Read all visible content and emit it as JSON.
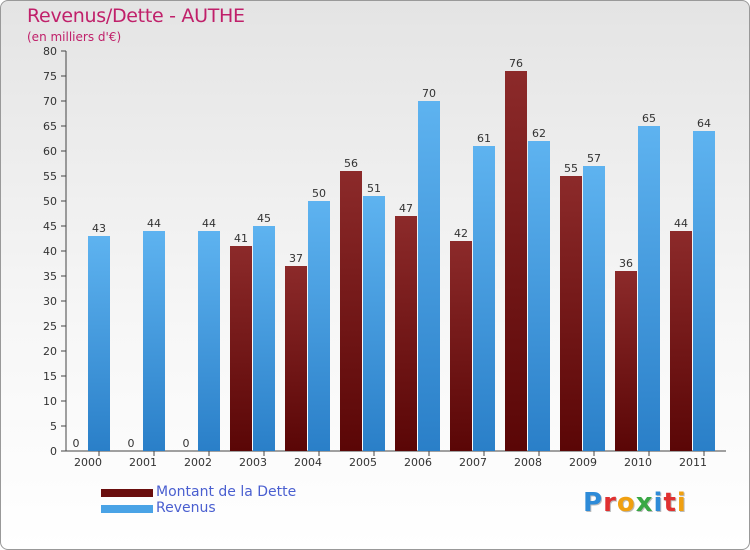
{
  "chart_data": {
    "type": "bar",
    "title": "Revenus/Dette - AUTHE",
    "subtitle": "(en milliers d'€)",
    "xlabel": "",
    "ylabel": "",
    "ylim": [
      0,
      80
    ],
    "ytick_step": 5,
    "categories": [
      "2000",
      "2001",
      "2002",
      "2003",
      "2004",
      "2005",
      "2006",
      "2007",
      "2008",
      "2009",
      "2010",
      "2011"
    ],
    "series": [
      {
        "name": "Montant de la Dette",
        "color": "#7a1a1a",
        "values": [
          0,
          0,
          0,
          41,
          37,
          56,
          47,
          42,
          76,
          55,
          36,
          44
        ]
      },
      {
        "name": "Revenus",
        "color": "#4aa3e6",
        "values": [
          43,
          44,
          44,
          45,
          50,
          51,
          70,
          61,
          62,
          57,
          65,
          64
        ]
      }
    ],
    "legend_position": "bottom-left",
    "grid": false
  },
  "logo": {
    "letters": [
      {
        "ch": "P",
        "color": "#2e8bd8"
      },
      {
        "ch": "r",
        "color": "#e03030"
      },
      {
        "ch": "o",
        "color": "#f0a010"
      },
      {
        "ch": "x",
        "color": "#39a845"
      },
      {
        "ch": "i",
        "color": "#2e8bd8"
      },
      {
        "ch": "t",
        "color": "#e03030"
      },
      {
        "ch": "i",
        "color": "#f0a010"
      }
    ]
  }
}
